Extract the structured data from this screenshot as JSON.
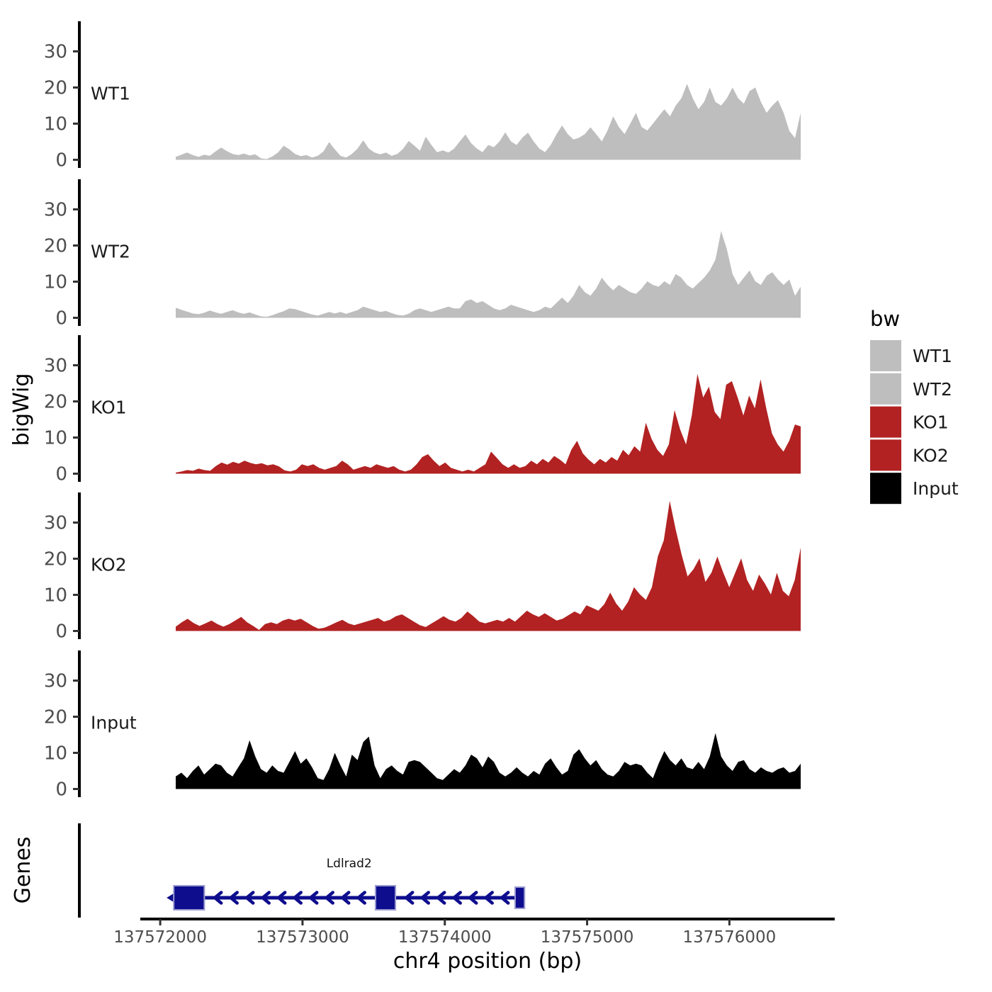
{
  "figure": {
    "y_axis_title": "bigWig",
    "genes_axis_title": "Genes",
    "x_axis_title": "chr4 position (bp)"
  },
  "legend": {
    "title": "bw",
    "items": [
      {
        "label": "WT1",
        "color": "#BEBEBE"
      },
      {
        "label": "WT2",
        "color": "#BEBEBE"
      },
      {
        "label": "KO1",
        "color": "#B22222"
      },
      {
        "label": "KO2",
        "color": "#B22222"
      },
      {
        "label": "Input",
        "color": "#000000"
      }
    ]
  },
  "chart_data": {
    "type": "area",
    "title": "",
    "xlabel": "chr4 position (bp)",
    "ylabel": "bigWig",
    "legend_title": "bw",
    "legend_position": "right",
    "grid": false,
    "axis_bp_range": [
      137571860,
      137576740
    ],
    "data_bp_range": [
      137572110,
      137576500
    ],
    "x_ticks_bp": [
      137572000,
      137573000,
      137574000,
      137575000,
      137576000
    ],
    "x_tick_labels": [
      "137572000",
      "137573000",
      "137574000",
      "137575000",
      "137576000"
    ],
    "y_ticks": [
      0,
      10,
      20,
      30
    ],
    "y_tick_labels": [
      "0",
      "10",
      "20",
      "30"
    ],
    "ylim": [
      0,
      38
    ],
    "tracks": [
      {
        "name": "WT1",
        "color": "#BEBEBE",
        "values": [
          0.8,
          1.4,
          2.0,
          1.3,
          0.8,
          1.4,
          1.1,
          2.3,
          3.4,
          2.4,
          1.6,
          1.3,
          1.7,
          1.2,
          1.5,
          0.4,
          0.2,
          0.9,
          2.0,
          3.9,
          2.9,
          1.6,
          1.0,
          1.3,
          0.6,
          1.1,
          2.3,
          4.9,
          2.9,
          1.1,
          0.6,
          1.6,
          3.1,
          5.4,
          3.1,
          2.0,
          1.5,
          2.0,
          1.1,
          1.6,
          3.0,
          5.2,
          3.9,
          2.5,
          6.4,
          4.1,
          2.1,
          2.6,
          2.0,
          3.1,
          5.1,
          7.0,
          4.6,
          3.1,
          2.1,
          4.1,
          3.5,
          5.1,
          7.6,
          5.1,
          4.1,
          6.1,
          7.5,
          5.1,
          3.1,
          2.1,
          4.1,
          7.0,
          9.5,
          7.1,
          5.6,
          6.1,
          7.1,
          9.0,
          7.1,
          5.1,
          8.1,
          12.0,
          9.1,
          7.1,
          10.0,
          13.0,
          9.1,
          8.1,
          10.0,
          12.0,
          14.0,
          12.0,
          15.0,
          17.0,
          21.0,
          17.0,
          14.0,
          16.0,
          20.0,
          16.0,
          15.0,
          17.0,
          20.0,
          17.0,
          15.5,
          19.0,
          20.0,
          16.0,
          13.0,
          15.0,
          16.5,
          13.0,
          8.0,
          6.0,
          13.0
        ]
      },
      {
        "name": "WT2",
        "color": "#BEBEBE",
        "values": [
          2.8,
          2.2,
          1.7,
          1.2,
          1.0,
          1.4,
          2.0,
          1.5,
          1.1,
          1.6,
          2.1,
          1.5,
          1.1,
          1.5,
          0.9,
          0.4,
          0.3,
          0.7,
          1.3,
          1.8,
          2.6,
          2.4,
          1.9,
          1.4,
          0.9,
          0.6,
          1.1,
          1.6,
          1.2,
          1.6,
          1.1,
          1.6,
          2.1,
          3.1,
          2.6,
          2.1,
          1.6,
          1.9,
          1.3,
          0.8,
          0.6,
          1.1,
          2.1,
          2.6,
          2.1,
          1.6,
          2.1,
          2.6,
          3.1,
          2.6,
          2.6,
          4.6,
          5.1,
          4.1,
          4.6,
          3.6,
          2.6,
          2.1,
          2.6,
          3.6,
          3.1,
          2.6,
          2.1,
          1.6,
          2.1,
          3.1,
          2.6,
          4.1,
          5.6,
          4.1,
          6.1,
          9.1,
          7.1,
          6.1,
          8.1,
          11.1,
          9.1,
          7.6,
          9.1,
          8.1,
          7.1,
          6.6,
          8.1,
          10.1,
          9.1,
          8.6,
          10.1,
          9.1,
          12.1,
          11.1,
          9.1,
          8.1,
          9.6,
          11.1,
          13.1,
          16.1,
          24.0,
          19.0,
          12.1,
          9.1,
          11.1,
          13.1,
          10.1,
          9.1,
          11.6,
          12.6,
          10.6,
          9.1,
          10.6,
          6.1,
          8.6
        ]
      },
      {
        "name": "KO1",
        "color": "#B22222",
        "values": [
          0.3,
          0.6,
          1.0,
          0.8,
          1.4,
          1.0,
          0.8,
          2.1,
          3.1,
          2.5,
          3.3,
          2.8,
          3.6,
          3.0,
          2.6,
          2.9,
          2.3,
          2.6,
          2.0,
          0.9,
          0.6,
          1.1,
          2.6,
          2.1,
          2.6,
          1.6,
          1.1,
          1.6,
          2.1,
          3.6,
          2.6,
          1.1,
          1.6,
          2.1,
          1.6,
          2.6,
          2.1,
          1.6,
          2.1,
          1.1,
          0.6,
          1.1,
          2.6,
          4.6,
          5.4,
          3.6,
          2.1,
          3.1,
          1.6,
          1.1,
          0.6,
          1.1,
          0.6,
          1.6,
          2.6,
          6.1,
          4.4,
          2.6,
          1.6,
          2.6,
          1.6,
          2.1,
          3.6,
          2.6,
          4.1,
          3.1,
          4.9,
          3.9,
          2.6,
          6.6,
          9.1,
          5.6,
          3.9,
          2.6,
          4.1,
          3.1,
          4.6,
          3.6,
          6.6,
          5.1,
          7.6,
          6.1,
          14.1,
          9.6,
          6.6,
          4.9,
          8.1,
          17.6,
          12.1,
          8.1,
          16.1,
          27.6,
          21.1,
          24.1,
          17.1,
          15.1,
          24.6,
          25.6,
          21.1,
          16.1,
          21.6,
          18.1,
          26.1,
          18.1,
          11.1,
          8.1,
          6.1,
          9.1,
          13.6,
          13.1
        ]
      },
      {
        "name": "KO2",
        "color": "#B22222",
        "values": [
          1.2,
          2.4,
          3.4,
          2.2,
          1.4,
          2.1,
          2.9,
          1.9,
          1.2,
          1.9,
          2.9,
          3.9,
          2.4,
          1.4,
          0.3,
          1.9,
          2.4,
          1.9,
          2.9,
          3.4,
          2.9,
          3.4,
          2.4,
          1.4,
          0.6,
          0.9,
          1.6,
          2.4,
          3.1,
          2.1,
          1.6,
          2.1,
          2.6,
          3.1,
          3.6,
          2.6,
          3.1,
          4.1,
          4.6,
          3.6,
          2.6,
          1.6,
          1.1,
          2.1,
          3.1,
          4.1,
          3.1,
          2.6,
          3.6,
          5.4,
          4.1,
          2.6,
          2.1,
          2.6,
          3.1,
          2.6,
          3.6,
          2.6,
          4.1,
          5.6,
          4.6,
          3.9,
          4.9,
          3.9,
          2.9,
          3.4,
          4.4,
          5.4,
          4.6,
          7.1,
          6.4,
          5.6,
          7.4,
          10.6,
          7.6,
          5.6,
          8.1,
          12.1,
          10.1,
          8.6,
          12.1,
          20.6,
          25.1,
          36.0,
          28.1,
          21.1,
          15.1,
          17.1,
          20.1,
          13.6,
          16.1,
          20.6,
          16.1,
          12.1,
          16.1,
          20.1,
          14.1,
          11.1,
          15.6,
          13.1,
          10.1,
          16.1,
          11.1,
          9.6,
          14.1,
          23.1
        ]
      },
      {
        "name": "Input",
        "color": "#000000",
        "values": [
          3.5,
          4.5,
          3.0,
          5.0,
          6.5,
          4.0,
          5.5,
          7.0,
          6.5,
          4.5,
          3.5,
          6.0,
          8.5,
          13.5,
          9.0,
          5.5,
          4.5,
          6.5,
          5.0,
          4.5,
          7.5,
          10.5,
          7.0,
          8.5,
          6.0,
          3.0,
          2.5,
          5.5,
          10.0,
          6.5,
          3.5,
          9.5,
          8.0,
          13.0,
          14.5,
          6.5,
          3.0,
          5.5,
          6.5,
          5.0,
          4.0,
          7.5,
          8.0,
          7.5,
          6.0,
          4.5,
          3.0,
          2.5,
          4.0,
          5.5,
          4.5,
          6.5,
          9.5,
          8.5,
          6.0,
          9.0,
          7.5,
          4.5,
          3.5,
          4.5,
          6.0,
          4.5,
          3.5,
          5.0,
          4.0,
          7.0,
          8.5,
          6.0,
          4.0,
          5.0,
          9.5,
          11.0,
          8.5,
          6.5,
          8.0,
          5.5,
          4.0,
          3.5,
          5.0,
          7.5,
          6.5,
          7.0,
          6.5,
          4.5,
          3.0,
          7.0,
          10.5,
          8.0,
          6.5,
          8.5,
          6.0,
          5.5,
          7.5,
          5.5,
          9.0,
          15.5,
          9.0,
          6.5,
          5.0,
          7.5,
          8.0,
          5.5,
          4.5,
          6.0,
          5.0,
          4.5,
          5.5,
          6.0,
          4.5,
          5.0,
          7.0
        ]
      }
    ],
    "gene": {
      "name": "Ldlrad2",
      "chrom": "chr4",
      "strand": "-",
      "start_bp": 137572095,
      "end_bp": 137574560,
      "exons_bp": [
        [
          137572095,
          137572310
        ],
        [
          137573513,
          137573653
        ],
        [
          137574494,
          137574560
        ]
      ],
      "color": "#0D0D8E",
      "outline_color": "#9B9BD0"
    },
    "colors": {
      "axis_line": "#000000",
      "tick_mark": "#333333",
      "tick_text": "#4D4D4D",
      "track_label_text": "#1A1A1A"
    }
  }
}
